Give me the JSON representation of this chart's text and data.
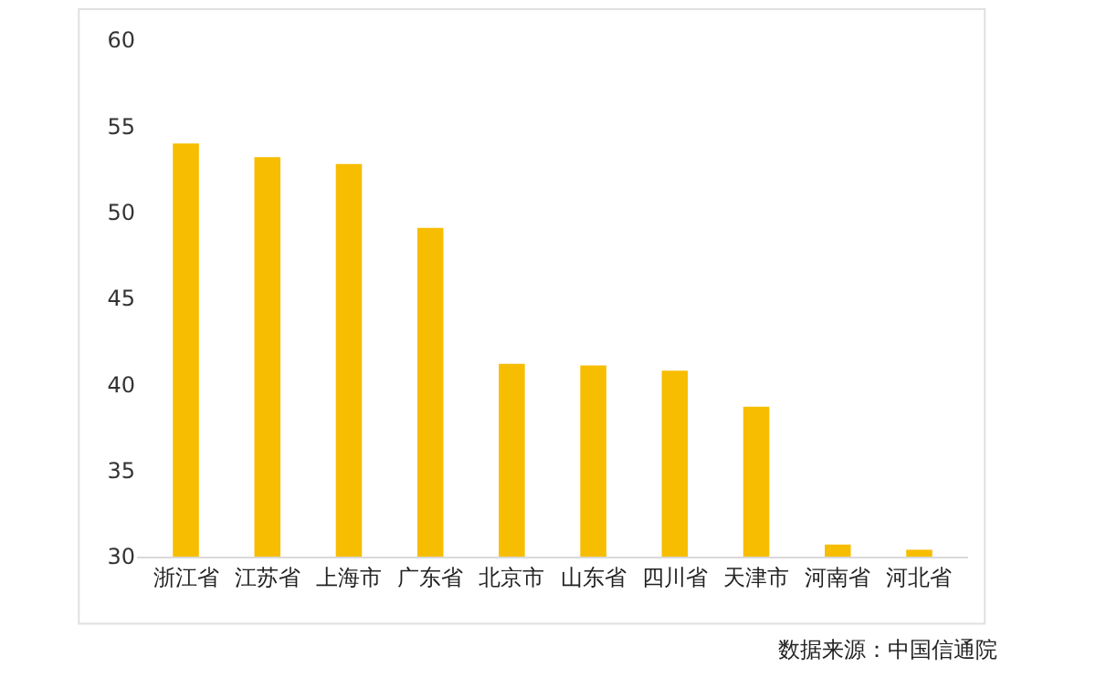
{
  "chart_data": {
    "type": "bar",
    "categories": [
      "浙江省",
      "江苏省",
      "上海市",
      "广东省",
      "北京市",
      "山东省",
      "四川省",
      "天津市",
      "河南省",
      "河北省"
    ],
    "values": [
      54.0,
      53.2,
      52.8,
      49.1,
      41.2,
      41.1,
      40.8,
      38.7,
      30.7,
      30.4
    ],
    "color": "#f7bd00",
    "ylim": [
      30,
      60
    ],
    "yticks": [
      30,
      35,
      40,
      45,
      50,
      55,
      60
    ],
    "annotations": [
      "数据来源：中国信通院"
    ]
  }
}
